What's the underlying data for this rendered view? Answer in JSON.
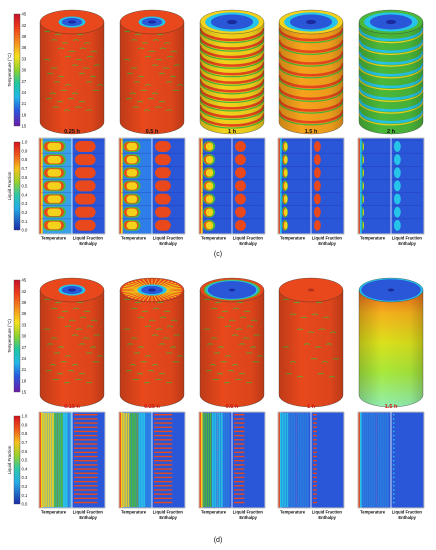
{
  "panels": [
    {
      "label": "(c)",
      "temp_bar": {
        "title": "Temperature (°C)",
        "ticks": [
          "45",
          "42",
          "39",
          "36",
          "33",
          "30",
          "27",
          "24",
          "21",
          "18",
          "15"
        ]
      },
      "cylinders": [
        {
          "time": "0.25 h",
          "pattern": "hot_topring"
        },
        {
          "time": "0.5 h",
          "pattern": "hot_topring"
        },
        {
          "time": "1 h",
          "pattern": "bands_dense"
        },
        {
          "time": "1.5 h",
          "pattern": "bands_mid"
        },
        {
          "time": "2 h",
          "pattern": "bands_cool"
        }
      ],
      "lf_bar": {
        "title": "Liquid Fraction",
        "ticks": [
          "1.0",
          "0.9",
          "0.8",
          "0.7",
          "0.6",
          "0.5",
          "0.4",
          "0.3",
          "0.2",
          "0.1",
          "0.0"
        ]
      },
      "ent_bar": {
        "title": "Total Enthalpy (kJ/kg)",
        "ticks": [
          "320",
          "280",
          "240",
          "200",
          "160",
          "120",
          "80",
          "40"
        ]
      },
      "sections": [
        {
          "stage": 0.15,
          "labels": [
            "Temperature",
            "Liquid Fraction",
            "Enthalpy"
          ]
        },
        {
          "stage": 0.35,
          "labels": [
            "Temperature",
            "Liquid Fraction",
            "Enthalpy"
          ]
        },
        {
          "stage": 0.55,
          "labels": [
            "Temperature",
            "Liquid Fraction",
            "Enthalpy"
          ]
        },
        {
          "stage": 0.78,
          "labels": [
            "Temperature",
            "Liquid Fraction",
            "Enthalpy"
          ]
        },
        {
          "stage": 0.95,
          "labels": [
            "Temperature",
            "Liquid Fraction",
            "Enthalpy"
          ]
        }
      ]
    },
    {
      "label": "(d)",
      "temp_bar": {
        "title": "Temperature (°C)",
        "ticks": [
          "45",
          "42",
          "39",
          "36",
          "33",
          "30",
          "27",
          "24",
          "21",
          "18",
          "15"
        ]
      },
      "cylinders": [
        {
          "time": "0.15 h",
          "pattern": "hot_topring"
        },
        {
          "time": "0.25 h",
          "pattern": "hot_sunburst"
        },
        {
          "time": "0.5 h",
          "pattern": "hot_bigtop"
        },
        {
          "time": "1 h",
          "pattern": "hot_plain"
        },
        {
          "time": "1.5 h",
          "pattern": "cool_gradient"
        }
      ],
      "lf_bar": {
        "title": "Liquid Fraction",
        "ticks": [
          "1.0",
          "0.9",
          "0.8",
          "0.7",
          "0.6",
          "0.5",
          "0.4",
          "0.3",
          "0.2",
          "0.1",
          "0.0"
        ]
      },
      "ent_bar": {
        "title": "Total Enthalpy (kJ/kg)",
        "ticks": [
          "320",
          "280",
          "240",
          "200",
          "160",
          "120",
          "80",
          "40"
        ]
      },
      "sections": [
        {
          "stage": 0.1,
          "labels": [
            "Temperature",
            "Liquid Fraction",
            "Enthalpy"
          ]
        },
        {
          "stage": 0.3,
          "labels": [
            "Temperature",
            "Liquid Fraction",
            "Enthalpy"
          ]
        },
        {
          "stage": 0.6,
          "labels": [
            "Temperature",
            "Liquid Fraction",
            "Enthalpy"
          ]
        },
        {
          "stage": 0.85,
          "labels": [
            "Temperature",
            "Liquid Fraction",
            "Enthalpy"
          ]
        },
        {
          "stage": 0.97,
          "labels": [
            "Temperature",
            "Liquid Fraction",
            "Enthalpy"
          ]
        }
      ]
    }
  ],
  "colors": {
    "hot": "#e8481c",
    "green": "#4ab83a",
    "yellow": "#f2d21b",
    "cyan": "#26c4e8",
    "blue": "#2a56d8",
    "navy": "#1a2a9c",
    "time_label_d": "#d81818"
  }
}
